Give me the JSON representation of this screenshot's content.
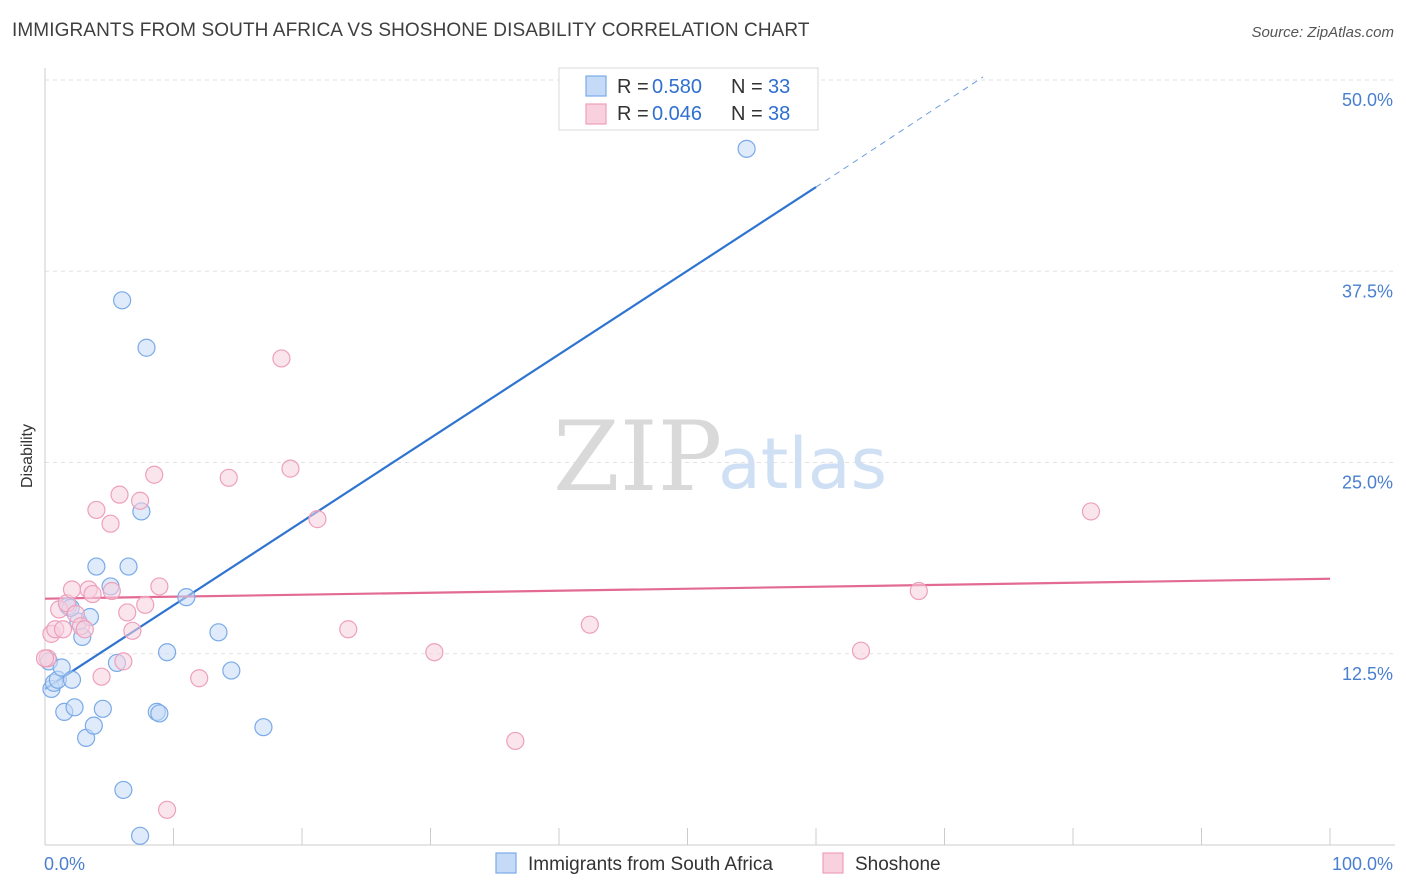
{
  "title": "IMMIGRANTS FROM SOUTH AFRICA VS SHOSHONE DISABILITY CORRELATION CHART",
  "source": "Source: ZipAtlas.com",
  "watermark": {
    "zip": "ZIP",
    "atlas": "atlas"
  },
  "chart_data": {
    "type": "scatter",
    "title": "IMMIGRANTS FROM SOUTH AFRICA VS SHOSHONE DISABILITY CORRELATION CHART",
    "xlabel": "",
    "ylabel": "Disability",
    "xlim": [
      0,
      100
    ],
    "ylim": [
      0,
      50
    ],
    "x_tick_labels": [
      "0.0%",
      "100.0%"
    ],
    "y_ticks": [
      {
        "value": 12.5,
        "label": "12.5%"
      },
      {
        "value": 25.0,
        "label": "25.0%"
      },
      {
        "value": 37.5,
        "label": "37.5%"
      },
      {
        "value": 50.0,
        "label": "50.0%"
      }
    ],
    "x_minor_tick_values": [
      10,
      20,
      30,
      40,
      50,
      60,
      70,
      80,
      90,
      100
    ],
    "grid": true,
    "legend": {
      "position": "top-center",
      "entries": [
        {
          "r_label": "R = ",
          "r_value": "0.580",
          "n_label": "N = ",
          "n_value": "33"
        },
        {
          "r_label": "R = ",
          "r_value": "0.046",
          "n_label": "N = ",
          "n_value": "38"
        }
      ]
    },
    "series": [
      {
        "name": "Immigrants from South Africa",
        "color": "#7aaae8",
        "fill": "#c5daf6",
        "line_color": "#2f74d0",
        "trend": {
          "x_start": 0,
          "y_start": 10.2,
          "x_end": 60,
          "y_end": 43.0,
          "dash_x_end": 73,
          "dash_y_end": 50.2
        },
        "points": [
          [
            0.3,
            12.0
          ],
          [
            0.5,
            10.2
          ],
          [
            0.7,
            10.6
          ],
          [
            1.0,
            10.8
          ],
          [
            1.3,
            11.6
          ],
          [
            1.5,
            8.7
          ],
          [
            1.8,
            15.6
          ],
          [
            2.1,
            10.8
          ],
          [
            2.3,
            9.0
          ],
          [
            2.6,
            14.6
          ],
          [
            2.9,
            13.6
          ],
          [
            3.2,
            7.0
          ],
          [
            3.5,
            14.9
          ],
          [
            3.8,
            7.8
          ],
          [
            4.0,
            18.2
          ],
          [
            4.5,
            8.9
          ],
          [
            5.1,
            16.9
          ],
          [
            5.6,
            11.9
          ],
          [
            6.0,
            35.6
          ],
          [
            6.1,
            3.6
          ],
          [
            6.5,
            18.2
          ],
          [
            7.4,
            0.6
          ],
          [
            7.5,
            21.8
          ],
          [
            7.9,
            32.5
          ],
          [
            8.7,
            8.7
          ],
          [
            8.9,
            8.6
          ],
          [
            9.5,
            12.6
          ],
          [
            11.0,
            16.2
          ],
          [
            13.5,
            13.9
          ],
          [
            14.5,
            11.4
          ],
          [
            17.0,
            7.7
          ],
          [
            54.6,
            45.5
          ],
          [
            2.0,
            15.5
          ]
        ]
      },
      {
        "name": "Shoshone",
        "color": "#eda0bc",
        "fill": "#f8d0de",
        "line_color": "#e36a93",
        "trend": {
          "x_start": 0,
          "y_start": 16.1,
          "x_end": 100,
          "y_end": 17.4
        },
        "points": [
          [
            0.2,
            12.2
          ],
          [
            0.5,
            13.8
          ],
          [
            0.8,
            14.1
          ],
          [
            1.1,
            15.4
          ],
          [
            1.4,
            14.1
          ],
          [
            1.7,
            15.8
          ],
          [
            2.1,
            16.7
          ],
          [
            2.4,
            15.1
          ],
          [
            2.8,
            14.3
          ],
          [
            3.1,
            14.1
          ],
          [
            3.4,
            16.7
          ],
          [
            3.7,
            16.4
          ],
          [
            4.0,
            21.9
          ],
          [
            4.4,
            11.0
          ],
          [
            5.1,
            21.0
          ],
          [
            5.2,
            16.6
          ],
          [
            5.8,
            22.9
          ],
          [
            6.1,
            12.0
          ],
          [
            6.4,
            15.2
          ],
          [
            6.8,
            14.0
          ],
          [
            7.4,
            22.5
          ],
          [
            7.8,
            15.7
          ],
          [
            8.5,
            24.2
          ],
          [
            8.9,
            16.9
          ],
          [
            9.5,
            2.3
          ],
          [
            12.0,
            10.9
          ],
          [
            14.3,
            24.0
          ],
          [
            18.4,
            31.8
          ],
          [
            19.1,
            24.6
          ],
          [
            21.2,
            21.3
          ],
          [
            23.6,
            14.1
          ],
          [
            30.3,
            12.6
          ],
          [
            36.6,
            6.8
          ],
          [
            42.4,
            14.4
          ],
          [
            63.5,
            12.7
          ],
          [
            68.0,
            16.6
          ],
          [
            81.4,
            21.8
          ],
          [
            0.0,
            12.2
          ]
        ]
      }
    ]
  }
}
